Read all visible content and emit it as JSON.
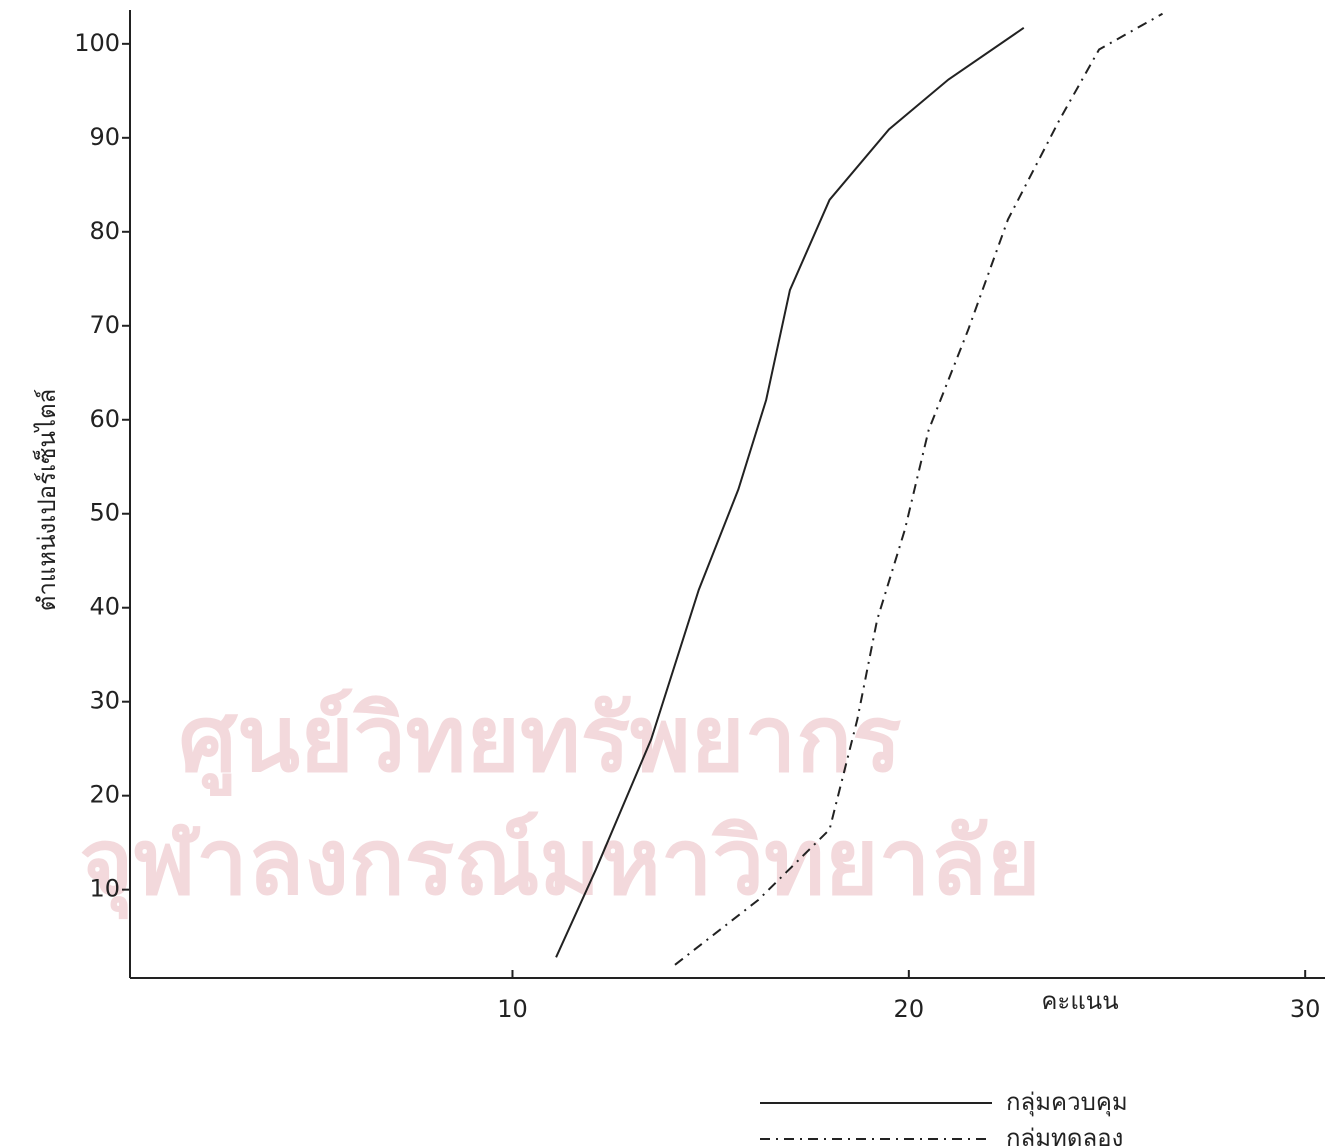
{
  "chart_data": {
    "type": "line",
    "watermark": [
      "ศูนย์วิทยทรัพยากร",
      "จุฬาลงกรณ์มหาวิทยาลัย"
    ],
    "x_label": "คะแนน",
    "y_label": "ตำแหน่งเปอร์เซ็นไตล์",
    "xlim": [
      0.35,
      30.5
    ],
    "ylim": [
      0.6,
      103.6
    ],
    "xticks": [
      10,
      20,
      30
    ],
    "yticks": [
      10,
      20,
      30,
      40,
      50,
      60,
      70,
      80,
      90,
      100
    ],
    "series": [
      {
        "name": "กลุ่มควบคุม",
        "color": "#222222",
        "dash": "none",
        "x": [
          11.1,
          12.1,
          13.5,
          14.7,
          15.7,
          16.4,
          17.0,
          18.0,
          19.5,
          21.0,
          22.9
        ],
        "values": [
          2.8,
          12.1,
          26,
          41.9,
          52.6,
          62.1,
          73.8,
          83.4,
          90.9,
          96.2,
          101.7
        ]
      },
      {
        "name": "กลุ่มทดลอง",
        "color": "#222222",
        "dash": "10 6 2 6",
        "x": [
          14.1,
          16.2,
          18.0,
          18.7,
          19.2,
          19.9,
          20.5,
          21.5,
          22.5,
          23.8,
          24.8,
          26.4
        ],
        "values": [
          2.0,
          8.9,
          16.4,
          28.1,
          38.7,
          48.3,
          58.9,
          69.6,
          81.3,
          91.9,
          99.4,
          103.2
        ]
      }
    ]
  }
}
